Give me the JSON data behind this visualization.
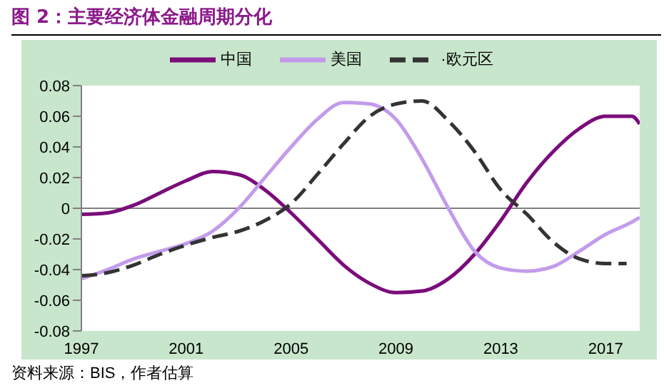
{
  "chart_data": {
    "type": "line",
    "title": "图 2：主要经济体金融周期分化",
    "series": [
      {
        "name": "中国",
        "color": "#7b0c7b",
        "line_style": "solid",
        "x": [
          1997,
          1998,
          1999,
          2000,
          2001,
          2002,
          2003,
          2004,
          2005,
          2006,
          2007,
          2008,
          2009,
          2010,
          2011,
          2012,
          2013,
          2014,
          2015,
          2016,
          2017,
          2018,
          2018.3
        ],
        "values": [
          -0.004,
          -0.003,
          0.002,
          0.01,
          0.018,
          0.024,
          0.022,
          0.012,
          -0.003,
          -0.02,
          -0.037,
          -0.049,
          -0.055,
          -0.054,
          -0.046,
          -0.03,
          -0.008,
          0.017,
          0.037,
          0.052,
          0.06,
          0.06,
          0.055
        ]
      },
      {
        "name": "美国",
        "color": "#c39beb",
        "line_style": "solid",
        "x": [
          1997,
          1998,
          1999,
          2000,
          2001,
          2002,
          2003,
          2004,
          2005,
          2006,
          2007,
          2008,
          2009,
          2010,
          2011,
          2012,
          2013,
          2014,
          2015,
          2016,
          2017,
          2018,
          2018.3
        ],
        "values": [
          -0.046,
          -0.04,
          -0.033,
          -0.028,
          -0.023,
          -0.015,
          0,
          0.02,
          0.04,
          0.058,
          0.069,
          0.068,
          0.058,
          0.032,
          0,
          -0.028,
          -0.039,
          -0.041,
          -0.038,
          -0.028,
          -0.017,
          -0.009,
          -0.006
        ]
      },
      {
        "name": "·欧元区",
        "color": "#333333",
        "line_style": "dashed",
        "x": [
          1997,
          1998,
          1999,
          2000,
          2001,
          2002,
          2003,
          2004,
          2005,
          2006,
          2007,
          2008,
          2009,
          2010,
          2011,
          2012,
          2013,
          2014,
          2015,
          2016,
          2017,
          2017.8
        ],
        "values": [
          -0.044,
          -0.042,
          -0.037,
          -0.03,
          -0.024,
          -0.019,
          -0.015,
          -0.008,
          0.003,
          0.022,
          0.042,
          0.06,
          0.068,
          0.07,
          0.057,
          0.037,
          0.012,
          -0.004,
          -0.022,
          -0.033,
          -0.036,
          -0.036
        ]
      }
    ],
    "xlim": [
      1997,
      2018.3
    ],
    "xticks": [
      1997,
      2001,
      2005,
      2009,
      2013,
      2017
    ],
    "ylim": [
      -0.08,
      0.08
    ],
    "yticks": [
      -0.08,
      -0.06,
      -0.04,
      -0.02,
      0,
      0.02,
      0.04,
      0.06,
      0.08
    ],
    "ref_lines": [
      {
        "axis": "y",
        "value": 0,
        "color": "#808080"
      }
    ],
    "grid": false,
    "legend": "top",
    "marker": "none",
    "annotations": [
      "资料来源：BIS，作者估算"
    ]
  }
}
